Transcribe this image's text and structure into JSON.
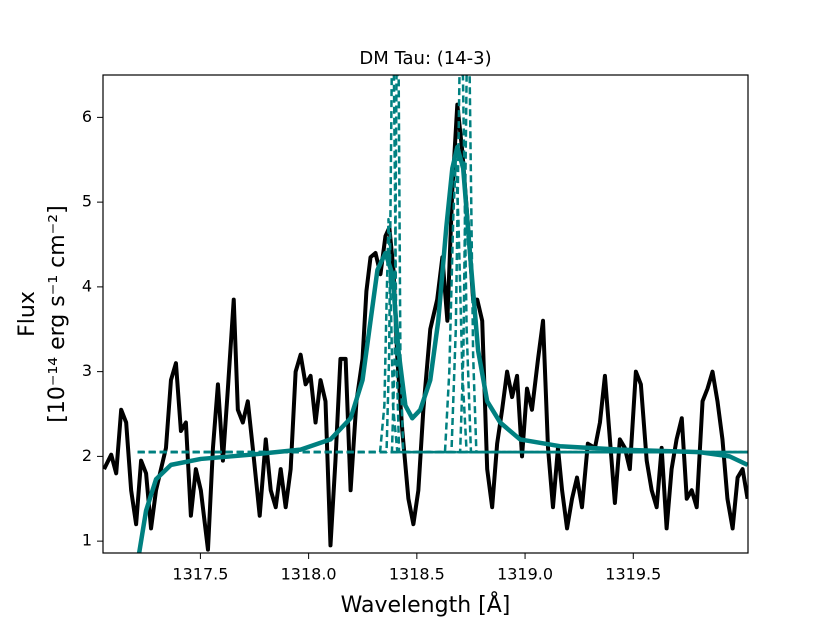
{
  "chart_data": {
    "type": "line",
    "title": "DM Tau: (14-3)",
    "xlabel": "Wavelength [Å]",
    "ylabel": [
      "Flux",
      "[10⁻¹⁴ erg s⁻¹ cm⁻²]"
    ],
    "xlim": [
      1317.05,
      1320.03
    ],
    "ylim": [
      0.86,
      6.5
    ],
    "xticks": [
      1317.5,
      {
        "value": 1318,
        "label": "1318.0"
      },
      1318.5,
      {
        "value": 1319,
        "label": "1319.0"
      },
      1319.5
    ],
    "yticks": [
      1,
      2,
      3,
      4,
      5,
      6
    ],
    "grid": false,
    "series": [
      {
        "color": "#000000",
        "style": "solid",
        "width": 4,
        "x": [
          1317.055,
          1317.088,
          1317.111,
          1317.134,
          1317.157,
          1317.18,
          1317.203,
          1317.226,
          1317.249,
          1317.272,
          1317.295,
          1317.318,
          1317.341,
          1317.364,
          1317.387,
          1317.41,
          1317.433,
          1317.456,
          1317.479,
          1317.502,
          1317.535,
          1317.558,
          1317.581,
          1317.604,
          1317.627,
          1317.654,
          1317.673,
          1317.696,
          1317.719,
          1317.742,
          1317.774,
          1317.802,
          1317.825,
          1317.848,
          1317.871,
          1317.894,
          1317.917,
          1317.94,
          1317.963,
          1317.986,
          1318.009,
          1318.032,
          1318.055,
          1318.078,
          1318.101,
          1318.124,
          1318.147,
          1318.171,
          1318.194,
          1318.221,
          1318.249,
          1318.267,
          1318.286,
          1318.309,
          1318.332,
          1318.355,
          1318.373,
          1318.392,
          1318.41,
          1318.433,
          1318.461,
          1318.484,
          1318.507,
          1318.53,
          1318.562,
          1318.594,
          1318.618,
          1318.641,
          1318.664,
          1318.687,
          1318.71,
          1318.737,
          1318.76,
          1318.779,
          1318.802,
          1318.825,
          1318.848,
          1318.871,
          1318.894,
          1318.917,
          1318.94,
          1318.963,
          1318.986,
          1319.009,
          1319.032,
          1319.06,
          1319.083,
          1319.106,
          1319.129,
          1319.152,
          1319.171,
          1319.194,
          1319.217,
          1319.24,
          1319.263,
          1319.29,
          1319.323,
          1319.346,
          1319.369,
          1319.392,
          1319.415,
          1319.438,
          1319.461,
          1319.484,
          1319.512,
          1319.535,
          1319.562,
          1319.585,
          1319.608,
          1319.631,
          1319.654,
          1319.677,
          1319.7,
          1319.724,
          1319.747,
          1319.77,
          1319.793,
          1319.82,
          1319.843,
          1319.866,
          1319.889,
          1319.912,
          1319.935,
          1319.959,
          1319.982,
          1320.005,
          1320.028
        ],
        "values": [
          1.85,
          2.02,
          1.8,
          2.55,
          2.4,
          1.6,
          1.2,
          1.95,
          1.8,
          1.15,
          1.6,
          1.85,
          2.1,
          2.9,
          3.1,
          2.3,
          2.4,
          1.3,
          1.85,
          1.6,
          0.9,
          2.1,
          2.85,
          1.95,
          2.8,
          3.85,
          2.55,
          2.4,
          2.65,
          2.1,
          1.3,
          2.2,
          1.6,
          1.4,
          1.85,
          1.4,
          1.85,
          3.0,
          3.2,
          2.85,
          2.95,
          2.4,
          2.9,
          2.65,
          0.95,
          1.95,
          3.15,
          3.15,
          1.6,
          2.65,
          3.15,
          3.95,
          4.35,
          4.4,
          4.15,
          4.6,
          4.7,
          4.2,
          3.15,
          2.3,
          1.5,
          1.2,
          1.6,
          2.55,
          3.5,
          3.85,
          4.35,
          3.6,
          5.15,
          6.15,
          5.6,
          4.7,
          3.85,
          3.85,
          3.6,
          1.85,
          1.4,
          2.15,
          2.55,
          3.0,
          2.7,
          2.95,
          2.0,
          2.8,
          2.55,
          3.15,
          3.6,
          2.1,
          1.4,
          2.1,
          1.6,
          1.15,
          1.5,
          1.75,
          1.4,
          2.15,
          2.1,
          2.4,
          2.95,
          2.2,
          1.45,
          2.2,
          2.1,
          1.85,
          3.0,
          2.85,
          1.95,
          1.6,
          1.4,
          2.1,
          1.15,
          1.85,
          2.2,
          2.45,
          1.5,
          1.6,
          1.4,
          2.65,
          2.8,
          3.0,
          2.65,
          2.2,
          1.5,
          1.15,
          1.75,
          1.85,
          1.5
        ]
      },
      {
        "color": "#008080",
        "style": "dashed",
        "width": 2.5,
        "x": [
          1317.21,
          1318.33,
          1318.35,
          1318.36,
          1318.369,
          1318.38,
          1318.39,
          1318.41,
          1320.03
        ],
        "values": [
          2.05,
          2.05,
          2.6,
          3.8,
          4.8,
          3.8,
          2.6,
          2.05,
          2.05
        ]
      },
      {
        "color": "#008080",
        "style": "dashed",
        "width": 2.5,
        "x": [
          1317.21,
          1318.36,
          1318.372,
          1318.384,
          1318.394,
          1318.406,
          1318.418,
          1320.03
        ],
        "values": [
          2.05,
          2.05,
          3.2,
          6.5,
          6.5,
          3.2,
          2.05,
          2.05
        ]
      },
      {
        "color": "#008080",
        "style": "dashed",
        "width": 2.5,
        "x": [
          1317.21,
          1318.385,
          1318.398,
          1318.406,
          1318.416,
          1318.424,
          1318.437,
          1320.03
        ],
        "values": [
          2.05,
          2.05,
          3.2,
          6.5,
          6.5,
          3.2,
          2.05,
          2.05
        ]
      },
      {
        "color": "#008080",
        "style": "dashed",
        "width": 2.5,
        "x": [
          1317.21,
          1318.63,
          1318.65,
          1318.668,
          1318.68,
          1318.692,
          1318.71,
          1318.73,
          1320.03
        ],
        "values": [
          2.05,
          2.05,
          3.0,
          4.8,
          5.5,
          4.8,
          3.0,
          2.05,
          2.05
        ]
      },
      {
        "color": "#008080",
        "style": "dashed",
        "width": 2.5,
        "x": [
          1317.21,
          1318.66,
          1318.68,
          1318.697,
          1318.713,
          1318.73,
          1318.75,
          1320.03
        ],
        "values": [
          2.05,
          2.05,
          3.5,
          6.5,
          6.5,
          3.5,
          2.05,
          2.05
        ]
      },
      {
        "color": "#008080",
        "style": "dashed",
        "width": 2.5,
        "x": [
          1317.21,
          1318.7,
          1318.715,
          1318.73,
          1318.744,
          1318.76,
          1318.775,
          1320.03
        ],
        "values": [
          2.05,
          2.05,
          3.2,
          6.5,
          6.5,
          3.2,
          2.05,
          2.05
        ]
      },
      {
        "color": "#008080",
        "style": "solid",
        "width": 4.5,
        "x": [
          1317.217,
          1317.249,
          1317.295,
          1317.364,
          1317.502,
          1317.733,
          1317.963,
          1318.101,
          1318.194,
          1318.249,
          1318.286,
          1318.318,
          1318.355,
          1318.387,
          1318.415,
          1318.447,
          1318.479,
          1318.516,
          1318.562,
          1318.599,
          1318.636,
          1318.664,
          1318.687,
          1318.714,
          1318.747,
          1318.783,
          1318.825,
          1318.885,
          1318.977,
          1319.161,
          1319.438,
          1319.806,
          1319.945,
          1320.028
        ],
        "values": [
          0.86,
          1.36,
          1.73,
          1.9,
          1.97,
          2.02,
          2.08,
          2.2,
          2.45,
          2.9,
          3.6,
          4.2,
          4.4,
          4.15,
          3.25,
          2.6,
          2.45,
          2.55,
          2.9,
          3.6,
          4.7,
          5.4,
          5.65,
          5.4,
          4.35,
          3.25,
          2.65,
          2.4,
          2.2,
          2.12,
          2.08,
          2.05,
          2.0,
          1.9
        ]
      }
    ]
  }
}
